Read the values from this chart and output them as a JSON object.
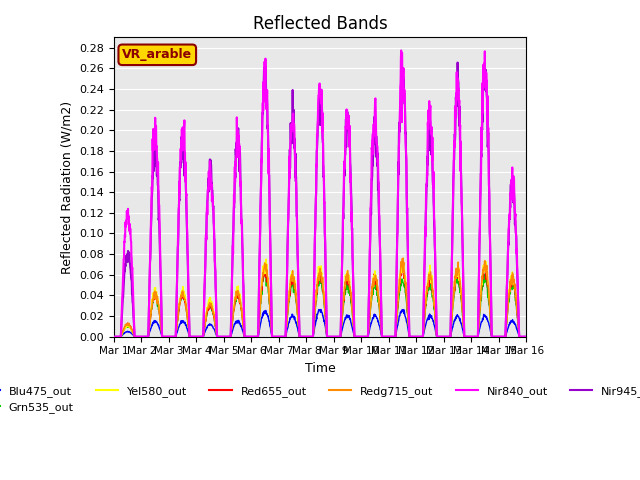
{
  "title": "Reflected Bands",
  "xlabel": "Time",
  "ylabel": "Reflected Radiation (W/m2)",
  "annotation_text": "VR_arable",
  "annotation_color": "#8B0000",
  "annotation_bg": "#FFD700",
  "ylim": [
    0,
    0.29
  ],
  "yticks": [
    0.0,
    0.02,
    0.04,
    0.06,
    0.08,
    0.1,
    0.12,
    0.14,
    0.16,
    0.18,
    0.2,
    0.22,
    0.24,
    0.26,
    0.28
  ],
  "xtick_labels": [
    "Mar 1",
    "Mar 2",
    "Mar 3",
    "Mar 4",
    "Mar 5",
    "Mar 6",
    "Mar 7",
    "Mar 8",
    "Mar 9",
    "Mar 10",
    "Mar 11",
    "Mar 12",
    "Mar 13",
    "Mar 14",
    "Mar 15",
    "Mar 16"
  ],
  "series": {
    "Blu475_out": {
      "color": "#0000FF",
      "lw": 1.0
    },
    "Grn535_out": {
      "color": "#00CC00",
      "lw": 1.0
    },
    "Yel580_out": {
      "color": "#FFFF00",
      "lw": 1.0
    },
    "Red655_out": {
      "color": "#FF0000",
      "lw": 1.0
    },
    "Redg715_out": {
      "color": "#FF8C00",
      "lw": 1.0
    },
    "Nir840_out": {
      "color": "#FF00FF",
      "lw": 1.5
    },
    "Nir945_out": {
      "color": "#9900CC",
      "lw": 1.5
    }
  },
  "n_days": 15,
  "pts_per_day": 96,
  "background_color": "#e8e8e8"
}
